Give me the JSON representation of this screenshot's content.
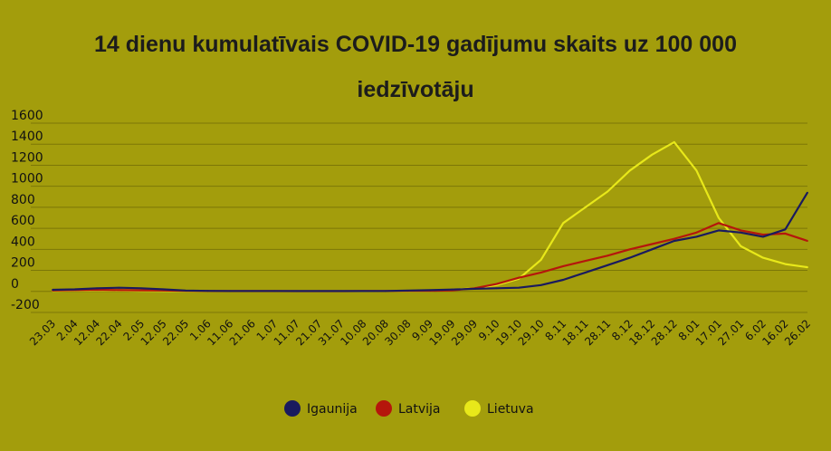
{
  "chart_data": {
    "type": "line",
    "title": "14 dienu kumulatīvais COVID-19 gadījumu skaits uz 100 000 iedzīvotāju",
    "title_lines": [
      "14 dienu kumulatīvais COVID-19 gadījumu skaits uz 100 000",
      "iedzīvotāju"
    ],
    "xlabel": "",
    "ylabel": "",
    "ylim": [
      -200,
      1600
    ],
    "yticks": [
      1600,
      1400,
      1200,
      1000,
      800,
      600,
      400,
      200,
      0,
      -200
    ],
    "x_tick_labels": [
      "23.03",
      "2.04",
      "12.04",
      "22.04",
      "2.05",
      "12.05",
      "22.05",
      "1.06",
      "11.06",
      "21.06",
      "1.07",
      "11.07",
      "21.07",
      "31.07",
      "10.08",
      "20.08",
      "30.08",
      "9.09",
      "19.09",
      "29.09",
      "9.10",
      "19.10",
      "29.10",
      "8.11",
      "18.11",
      "28.11",
      "8.12",
      "18.12",
      "28.12",
      "8.01",
      "17.01",
      "27.01",
      "6.02",
      "16.02",
      "26.02"
    ],
    "grid": true,
    "legend_position": "bottom",
    "series": [
      {
        "name": "Igaunija",
        "color": "#1a1a5e",
        "values": [
          15,
          20,
          30,
          35,
          30,
          20,
          8,
          5,
          4,
          4,
          4,
          3,
          3,
          3,
          3,
          4,
          8,
          12,
          18,
          25,
          30,
          35,
          60,
          110,
          180,
          250,
          320,
          400,
          480,
          520,
          580,
          560,
          520,
          590,
          940
        ]
      },
      {
        "name": "Latvija",
        "color": "#b5160c",
        "values": [
          8,
          12,
          15,
          12,
          10,
          8,
          6,
          4,
          3,
          3,
          3,
          2,
          2,
          2,
          3,
          4,
          5,
          6,
          10,
          30,
          70,
          130,
          180,
          240,
          290,
          340,
          400,
          450,
          500,
          560,
          650,
          580,
          540,
          550,
          480
        ]
      },
      {
        "name": "Lietuva",
        "color": "#e8e81a",
        "values": [
          5,
          8,
          10,
          8,
          6,
          4,
          3,
          3,
          3,
          3,
          3,
          2,
          2,
          2,
          2,
          3,
          4,
          6,
          15,
          30,
          60,
          120,
          300,
          650,
          800,
          950,
          1150,
          1300,
          1420,
          1150,
          700,
          430,
          320,
          260,
          230
        ]
      }
    ]
  }
}
